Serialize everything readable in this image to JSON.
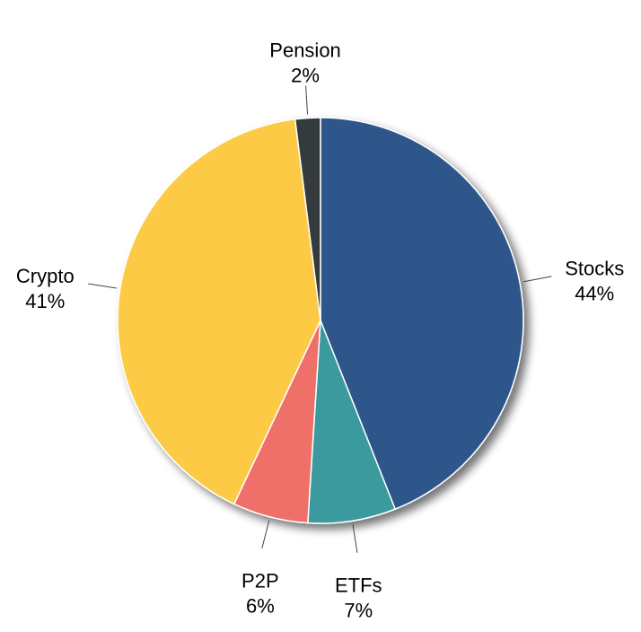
{
  "chart_data": {
    "type": "pie",
    "title": "",
    "start_angle_deg": 0,
    "direction": "clockwise",
    "legend": "none",
    "slices": [
      {
        "name": "Stocks",
        "label": "Stocks",
        "pct_label": "44%",
        "value": 44,
        "color": "#2e578a"
      },
      {
        "name": "ETFs",
        "label": "ETFs",
        "pct_label": "7%",
        "value": 7,
        "color": "#3a9a9e"
      },
      {
        "name": "P2P",
        "label": "P2P",
        "pct_label": "6%",
        "value": 6,
        "color": "#ee7069"
      },
      {
        "name": "Crypto",
        "label": "Crypto",
        "pct_label": "41%",
        "value": 41,
        "color": "#fcca45"
      },
      {
        "name": "Pension",
        "label": "Pension",
        "pct_label": "2%",
        "value": 2,
        "color": "#353a3d"
      }
    ]
  }
}
